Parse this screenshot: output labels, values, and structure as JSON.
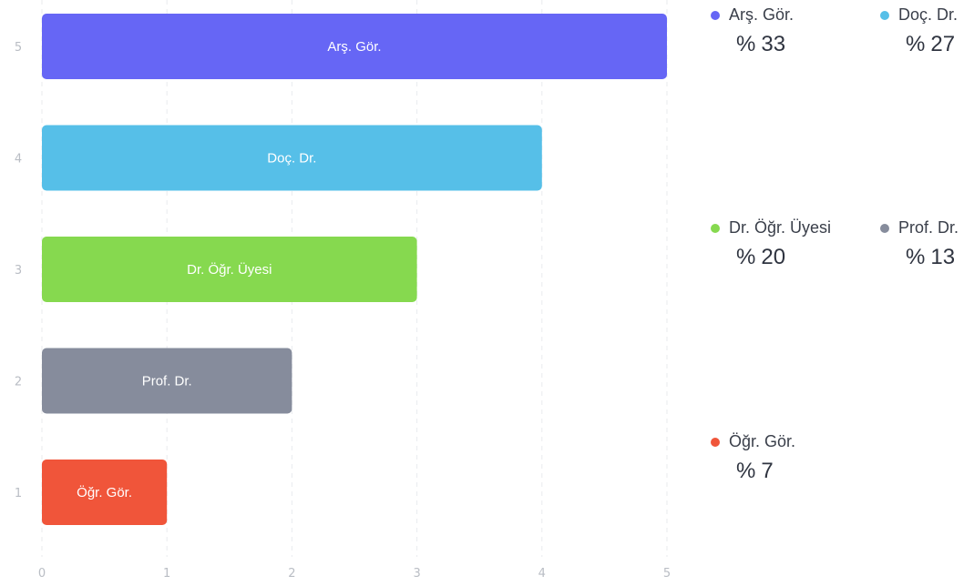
{
  "chart_data": {
    "type": "bar",
    "orientation": "horizontal",
    "categories": [
      "1",
      "2",
      "3",
      "4",
      "5"
    ],
    "values": [
      1,
      2,
      3,
      4,
      5
    ],
    "bar_labels": [
      "Öğr. Gör.",
      "Prof. Dr.",
      "Dr. Öğr. Üyesi",
      "Doç. Dr.",
      "Arş. Gör."
    ],
    "colors": [
      "#f0553a",
      "#868c9c",
      "#86d94f",
      "#56bfe8",
      "#6666f5"
    ],
    "xlim": [
      0,
      5
    ],
    "x_ticks": [
      "0",
      "1",
      "2",
      "3",
      "4",
      "5"
    ],
    "grid": true
  },
  "legend": [
    {
      "label": "Arş. Gör.",
      "percent_symbol": "%",
      "percent": "33",
      "color": "#6666f5"
    },
    {
      "label": "Doç. Dr.",
      "percent_symbol": "%",
      "percent": "27",
      "color": "#56bfe8"
    },
    {
      "label": "Dr. Öğr. Üyesi",
      "percent_symbol": "%",
      "percent": "20",
      "color": "#86d94f"
    },
    {
      "label": "Prof. Dr.",
      "percent_symbol": "%",
      "percent": "13",
      "color": "#868c9c"
    },
    {
      "label": "Öğr. Gör.",
      "percent_symbol": "%",
      "percent": "7",
      "color": "#f0553a"
    }
  ]
}
